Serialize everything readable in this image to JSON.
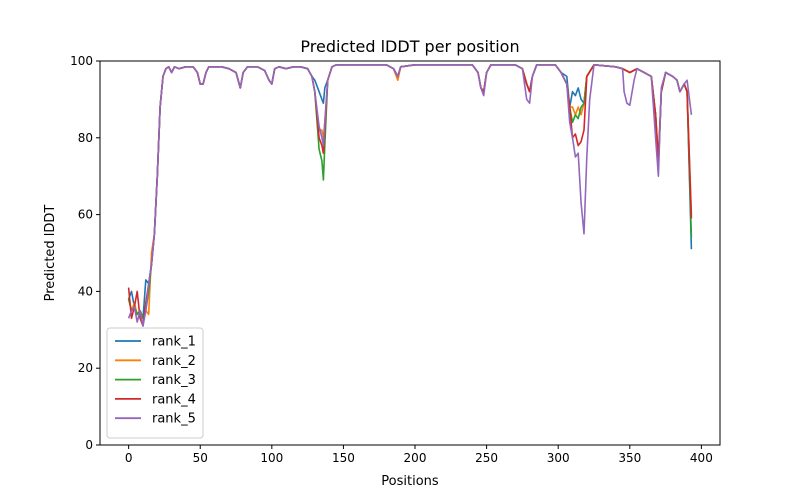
{
  "chart_data": {
    "type": "line",
    "title": "Predicted lDDT per position",
    "xlabel": "Positions",
    "ylabel": "Predicted lDDT",
    "xlim": [
      -20,
      413
    ],
    "ylim": [
      0,
      100
    ],
    "xticks": [
      0,
      50,
      100,
      150,
      200,
      250,
      300,
      350,
      400
    ],
    "yticks": [
      0,
      20,
      40,
      60,
      80,
      100
    ],
    "grid": false,
    "legend_position": "lower-left",
    "shared_profile": [
      [
        0,
        38
      ],
      [
        2,
        35
      ],
      [
        4,
        36
      ],
      [
        6,
        34
      ],
      [
        8,
        35
      ],
      [
        10,
        33
      ],
      [
        12,
        35
      ],
      [
        14,
        42
      ],
      [
        16,
        47
      ],
      [
        18,
        55
      ],
      [
        20,
        70
      ],
      [
        22,
        88
      ],
      [
        24,
        96
      ],
      [
        26,
        98
      ],
      [
        28,
        98.5
      ],
      [
        30,
        97
      ],
      [
        32,
        98.5
      ],
      [
        35,
        98
      ],
      [
        40,
        98.5
      ],
      [
        45,
        98.5
      ],
      [
        48,
        97
      ],
      [
        50,
        94
      ],
      [
        52,
        94
      ],
      [
        54,
        97
      ],
      [
        56,
        98.5
      ],
      [
        65,
        98.5
      ],
      [
        70,
        98
      ],
      [
        75,
        97
      ],
      [
        78,
        93
      ],
      [
        80,
        97
      ],
      [
        83,
        98.5
      ],
      [
        90,
        98.5
      ],
      [
        95,
        97.5
      ],
      [
        98,
        95
      ],
      [
        100,
        94
      ],
      [
        102,
        98
      ],
      [
        105,
        98.5
      ],
      [
        110,
        98
      ],
      [
        115,
        98.5
      ],
      [
        120,
        98.5
      ],
      [
        125,
        98
      ],
      [
        128,
        96
      ],
      [
        130,
        92
      ],
      [
        133,
        85
      ],
      [
        135,
        79
      ],
      [
        137,
        84
      ],
      [
        139,
        95
      ],
      [
        142,
        98.5
      ],
      [
        145,
        99
      ],
      [
        180,
        99
      ],
      [
        185,
        98
      ],
      [
        188,
        96
      ],
      [
        190,
        98.5
      ],
      [
        200,
        99
      ],
      [
        240,
        99
      ],
      [
        244,
        97
      ],
      [
        246,
        93
      ],
      [
        248,
        92
      ],
      [
        250,
        97
      ],
      [
        253,
        99
      ],
      [
        270,
        99
      ],
      [
        275,
        98
      ],
      [
        278,
        94
      ],
      [
        280,
        92
      ],
      [
        282,
        96
      ],
      [
        285,
        99
      ],
      [
        298,
        99
      ],
      [
        302,
        97
      ],
      [
        306,
        94
      ],
      [
        308,
        88
      ],
      [
        310,
        84
      ],
      [
        312,
        83
      ],
      [
        314,
        80
      ],
      [
        316,
        82
      ],
      [
        318,
        89
      ],
      [
        320,
        96
      ],
      [
        325,
        99
      ],
      [
        340,
        98.5
      ],
      [
        345,
        98
      ],
      [
        350,
        97
      ],
      [
        355,
        98
      ],
      [
        360,
        97
      ],
      [
        365,
        96
      ],
      [
        368,
        86
      ],
      [
        370,
        73
      ],
      [
        372,
        92
      ],
      [
        375,
        97
      ],
      [
        380,
        96
      ],
      [
        383,
        95
      ],
      [
        385,
        92
      ],
      [
        388,
        94
      ],
      [
        390,
        92
      ]
    ],
    "series": [
      {
        "name": "rank_1",
        "color": "#1f77b4",
        "overrides": [
          [
            2,
            40
          ],
          [
            12,
            43
          ],
          [
            130,
            95
          ],
          [
            133,
            92
          ],
          [
            135,
            90
          ],
          [
            136,
            89
          ],
          [
            137,
            93
          ],
          [
            306,
            96
          ],
          [
            310,
            92
          ],
          [
            312,
            91
          ],
          [
            314,
            93
          ],
          [
            316,
            90
          ],
          [
            393,
            51
          ]
        ]
      },
      {
        "name": "rank_2",
        "color": "#ff7f0e",
        "overrides": [
          [
            4,
            37
          ],
          [
            14,
            34
          ],
          [
            16,
            50
          ],
          [
            133,
            82
          ],
          [
            135,
            82
          ],
          [
            136,
            80
          ],
          [
            188,
            95
          ],
          [
            310,
            88
          ],
          [
            312,
            86
          ],
          [
            314,
            88
          ],
          [
            316,
            86
          ],
          [
            370,
            75
          ],
          [
            393,
            60
          ]
        ]
      },
      {
        "name": "rank_3",
        "color": "#2ca02c",
        "overrides": [
          [
            14,
            40
          ],
          [
            133,
            77
          ],
          [
            135,
            74
          ],
          [
            136,
            69
          ],
          [
            137,
            78
          ],
          [
            312,
            86
          ],
          [
            314,
            85
          ],
          [
            316,
            88
          ],
          [
            393,
            54
          ]
        ]
      },
      {
        "name": "rank_4",
        "color": "#d62728",
        "overrides": [
          [
            0,
            41
          ],
          [
            2,
            33
          ],
          [
            6,
            40
          ],
          [
            8,
            33
          ],
          [
            10,
            31
          ],
          [
            12,
            37
          ],
          [
            133,
            80
          ],
          [
            135,
            78
          ],
          [
            136,
            76
          ],
          [
            137,
            82
          ],
          [
            310,
            80
          ],
          [
            312,
            81
          ],
          [
            314,
            78
          ],
          [
            316,
            79
          ],
          [
            318,
            82
          ],
          [
            370,
            74
          ],
          [
            393,
            59
          ]
        ]
      },
      {
        "name": "rank_5",
        "color": "#9467bd",
        "overrides": [
          [
            0,
            33
          ],
          [
            6,
            32
          ],
          [
            10,
            31
          ],
          [
            133,
            83
          ],
          [
            135,
            80
          ],
          [
            136,
            78
          ],
          [
            248,
            91
          ],
          [
            278,
            90
          ],
          [
            280,
            89
          ],
          [
            308,
            84
          ],
          [
            310,
            80
          ],
          [
            312,
            75
          ],
          [
            314,
            76
          ],
          [
            316,
            63
          ],
          [
            318,
            55
          ],
          [
            320,
            75
          ],
          [
            322,
            90
          ],
          [
            346,
            92
          ],
          [
            348,
            89
          ],
          [
            350,
            88.5
          ],
          [
            353,
            95
          ],
          [
            368,
            80
          ],
          [
            370,
            70
          ],
          [
            372,
            93
          ],
          [
            390,
            95
          ],
          [
            393,
            86
          ]
        ]
      }
    ]
  }
}
